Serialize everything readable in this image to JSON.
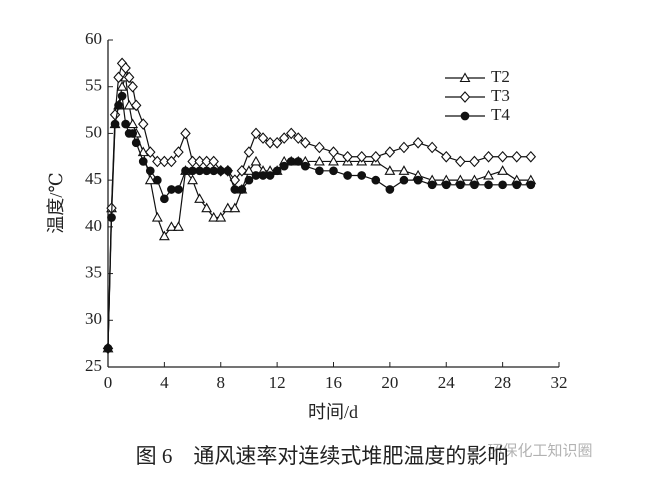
{
  "chart_data": {
    "type": "line",
    "caption": "图 6　通风速率对连续式堆肥温度的影响",
    "watermark": "环保化工知识圈",
    "xlabel": "时间/d",
    "ylabel": "温度/℃",
    "x": [
      0,
      0.25,
      0.5,
      0.75,
      1,
      1.25,
      1.5,
      1.75,
      2,
      2.5,
      3,
      3.5,
      4,
      4.5,
      5,
      5.5,
      6,
      6.5,
      7,
      7.5,
      8,
      8.5,
      9,
      9.5,
      10,
      10.5,
      11,
      11.5,
      12,
      12.5,
      13,
      13.5,
      14,
      15,
      16,
      17,
      18,
      19,
      20,
      21,
      22,
      23,
      24,
      25,
      26,
      27,
      28,
      29,
      30
    ],
    "series": [
      {
        "name": "T2",
        "color": "#111111",
        "marker": "triangle",
        "values": [
          27,
          42,
          51,
          53,
          55,
          56,
          53,
          51,
          50,
          48,
          45,
          41,
          39,
          40,
          40,
          46,
          45,
          43,
          42,
          41,
          41,
          42,
          42,
          44,
          46,
          47,
          46,
          46,
          46,
          47,
          47,
          47,
          47,
          47,
          47,
          47,
          47,
          47,
          46,
          46,
          45.5,
          45,
          45,
          45,
          45,
          45.5,
          46,
          45,
          45
        ]
      },
      {
        "name": "T3",
        "color": "#111111",
        "marker": "diamond",
        "values": [
          27,
          42,
          52,
          56,
          57.5,
          57,
          56,
          55,
          53,
          51,
          48,
          47,
          47,
          47,
          48,
          50,
          47,
          47,
          47,
          47,
          46,
          46,
          45,
          46,
          48,
          50,
          49.5,
          49,
          49,
          49.5,
          50,
          49.5,
          49,
          48.5,
          48,
          47.5,
          47.5,
          47.5,
          48,
          48.5,
          49,
          48.5,
          47.5,
          47,
          47,
          47.5,
          47.5,
          47.5,
          47.5
        ]
      },
      {
        "name": "T4",
        "color": "#111111",
        "marker": "circle",
        "values": [
          27,
          41,
          51,
          53,
          54,
          51,
          50,
          50,
          49,
          47,
          46,
          45,
          43,
          44,
          44,
          46,
          46,
          46,
          46,
          46,
          46,
          46,
          44,
          44,
          45,
          45.5,
          45.5,
          45.5,
          46,
          46.5,
          47,
          47,
          46.5,
          46,
          46,
          45.5,
          45.5,
          45,
          44,
          45,
          45,
          44.5,
          44.5,
          44.5,
          44.5,
          44.5,
          44.5,
          44.5,
          44.5
        ]
      }
    ],
    "xlim": [
      0,
      32
    ],
    "xticks": [
      0,
      4,
      8,
      12,
      16,
      20,
      24,
      28,
      32
    ],
    "ylim": [
      25,
      60
    ],
    "yticks": [
      25,
      30,
      35,
      40,
      45,
      50,
      55,
      60
    ],
    "legend": "upper right"
  }
}
